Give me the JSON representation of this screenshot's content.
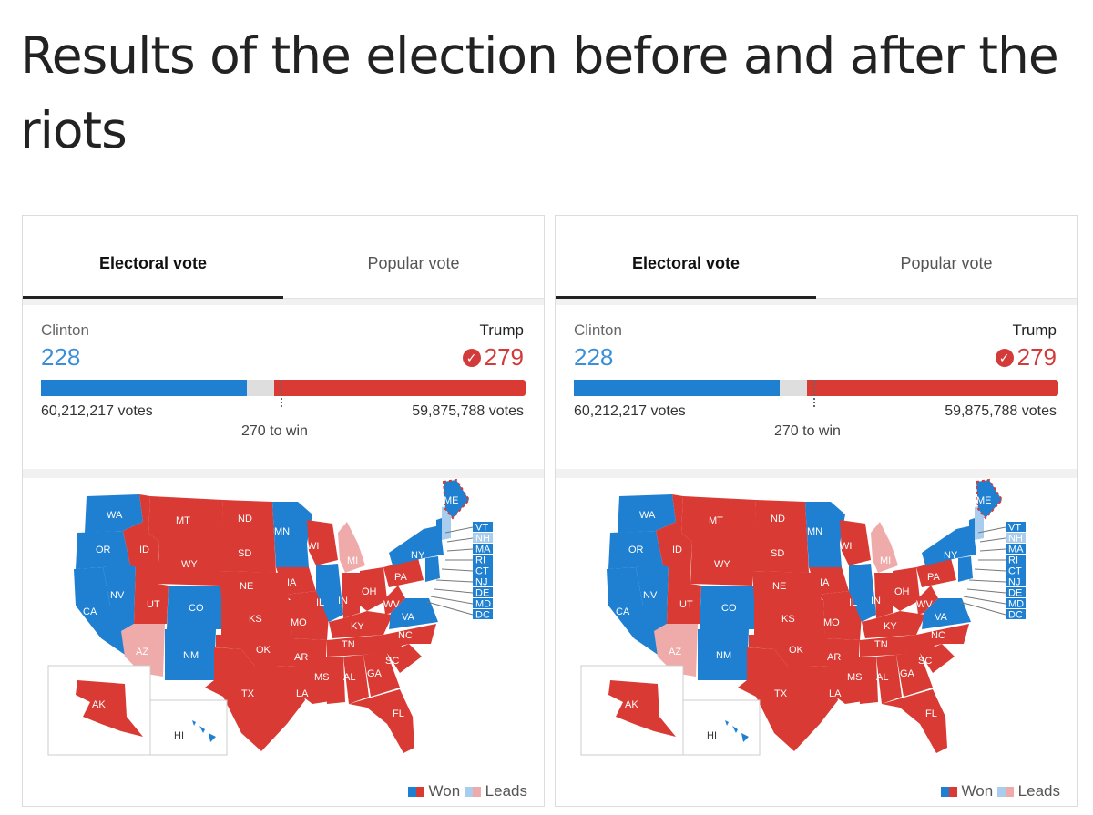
{
  "headline": "Results of the election before and after the riots",
  "tabs": {
    "electoral": "Electoral vote",
    "popular": "Popular vote"
  },
  "candidates": {
    "left": {
      "name": "Clinton",
      "count": "228",
      "votes": "60,212,217 votes"
    },
    "right": {
      "name": "Trump",
      "count": "279",
      "votes": "59,875,788 votes",
      "check": "✓"
    }
  },
  "threshold": "270 to win",
  "electoral_split": {
    "clinton": 228,
    "trump": 279,
    "total": 538
  },
  "legend": {
    "won": "Won",
    "leads": "Leads"
  },
  "colors": {
    "dem_won": "#1f80d2",
    "rep_won": "#d93a33",
    "dem_leads": "#a9cdef",
    "rep_leads": "#efaaaa"
  },
  "map": {
    "labels": {
      "wa": "WA",
      "or": "OR",
      "ca": "CA",
      "nv": "NV",
      "id": "ID",
      "mt": "MT",
      "wy": "WY",
      "ut": "UT",
      "co": "CO",
      "az": "AZ",
      "nm": "NM",
      "nd": "ND",
      "sd": "SD",
      "ne": "NE",
      "ks": "KS",
      "ok": "OK",
      "tx": "TX",
      "mn": "MN",
      "ia": "IA",
      "mo": "MO",
      "ar": "AR",
      "la": "LA",
      "wi": "WI",
      "il": "IL",
      "mi": "MI",
      "in": "IN",
      "oh": "OH",
      "ky": "KY",
      "tn": "TN",
      "ms": "MS",
      "al": "AL",
      "ga": "GA",
      "fl": "FL",
      "sc": "SC",
      "nc": "NC",
      "va": "VA",
      "wv": "WV",
      "pa": "PA",
      "ny": "NY",
      "me": "ME",
      "ak": "AK",
      "hi": "HI"
    },
    "small_states": [
      "VT",
      "NH",
      "MA",
      "RI",
      "CT",
      "NJ",
      "DE",
      "MD",
      "DC"
    ]
  }
}
